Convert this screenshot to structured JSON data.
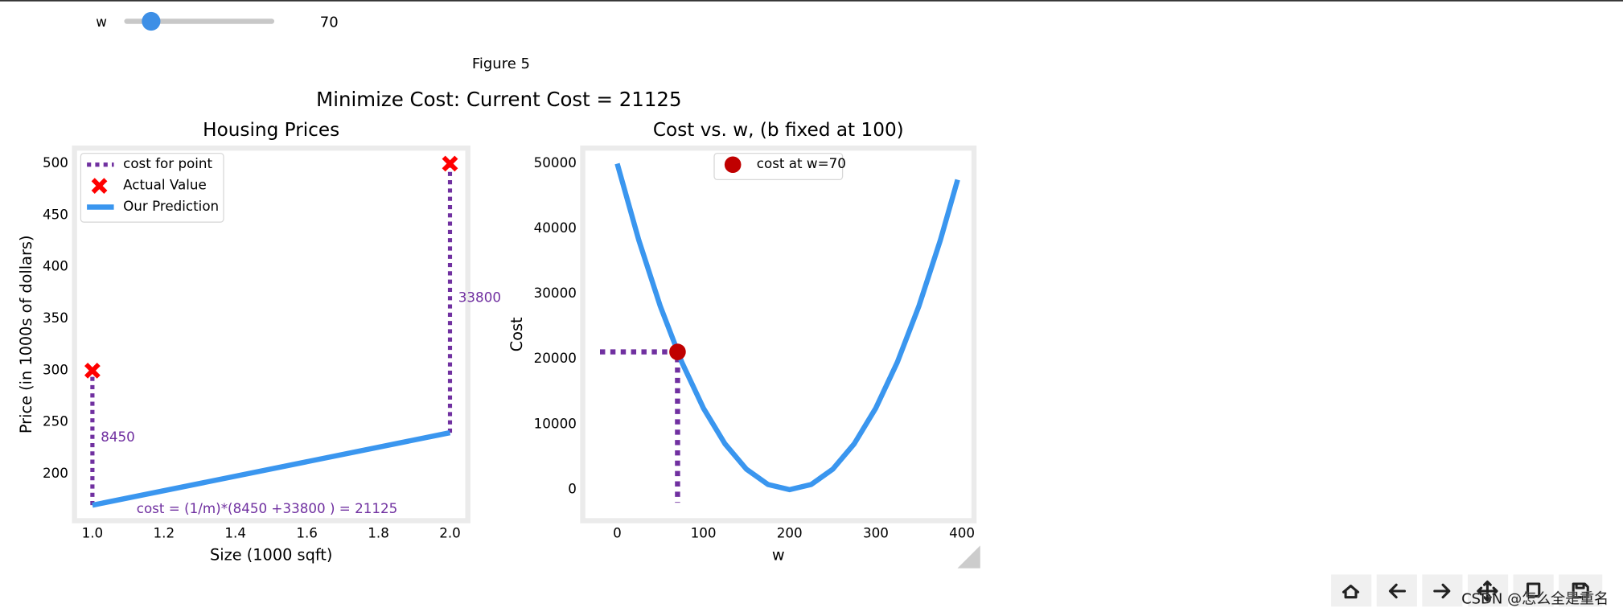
{
  "widget": {
    "label": "w",
    "value": 70
  },
  "figure": {
    "label": "Figure 5",
    "suptitle": "Minimize Cost: Current Cost = 21125"
  },
  "watermark": "CSDN @怎么全是重名",
  "chart_data": [
    {
      "type": "scatter",
      "title": "Housing Prices",
      "xlabel": "Size (1000 sqft)",
      "ylabel": "Price (in 1000s of dollars)",
      "xlim": [
        0.95,
        2.05
      ],
      "ylim": [
        155,
        515
      ],
      "xticks": [
        {
          "value": 1,
          "label": "1.0"
        },
        1.2,
        1.4,
        1.6,
        1.8,
        {
          "value": 2,
          "label": "2.0"
        }
      ],
      "yticks": [
        200,
        250,
        300,
        350,
        400,
        450,
        500
      ],
      "legend": "upper left",
      "annotation": "cost = (1/m)*(8450 +33800 ) = 21125",
      "series": [
        {
          "name": "cost for point",
          "color": "#7030a0",
          "style": "dotted",
          "x": [
            1,
            2
          ],
          "low": [
            170,
            240
          ],
          "high": [
            300,
            500
          ],
          "labels": [
            8450,
            33800
          ]
        },
        {
          "name": "Actual Value",
          "color": "#ff0000",
          "marker": "X",
          "x": [
            1,
            2
          ],
          "values": [
            300,
            500
          ]
        },
        {
          "name": "Our Prediction",
          "color": "#3a96ef",
          "x": [
            1,
            2
          ],
          "values": [
            170,
            240
          ]
        }
      ]
    },
    {
      "type": "line",
      "title": "Cost vs. w, (b fixed at 100)",
      "xlabel": "w",
      "ylabel": "Cost",
      "xlim": [
        -40,
        414
      ],
      "ylim": [
        -4760,
        52380
      ],
      "xticks": [
        0,
        100,
        200,
        300,
        400
      ],
      "yticks": [
        0,
        10000,
        20000,
        30000,
        40000,
        50000
      ],
      "legend": "upper center",
      "series": [
        {
          "color": "#7030a0",
          "style": "dotted",
          "x": [
            -20,
            70,
            70
          ],
          "values": [
            21125,
            21125,
            -2000
          ]
        },
        {
          "color": "#3a96ef",
          "x": [
            0,
            25,
            50,
            75,
            100,
            125,
            150,
            175,
            200,
            225,
            250,
            275,
            300,
            325,
            350,
            375,
            395
          ],
          "values": [
            50000,
            38281.25,
            28125,
            19531.25,
            12500,
            7031.25,
            3125,
            781.25,
            0,
            781.25,
            3125,
            7031.25,
            12500,
            19531.25,
            28125,
            38281.25,
            47531.25
          ]
        },
        {
          "name": "cost at w=70",
          "color": "#c00000",
          "marker": "o",
          "x": [
            70
          ],
          "values": [
            21125
          ]
        }
      ]
    }
  ]
}
